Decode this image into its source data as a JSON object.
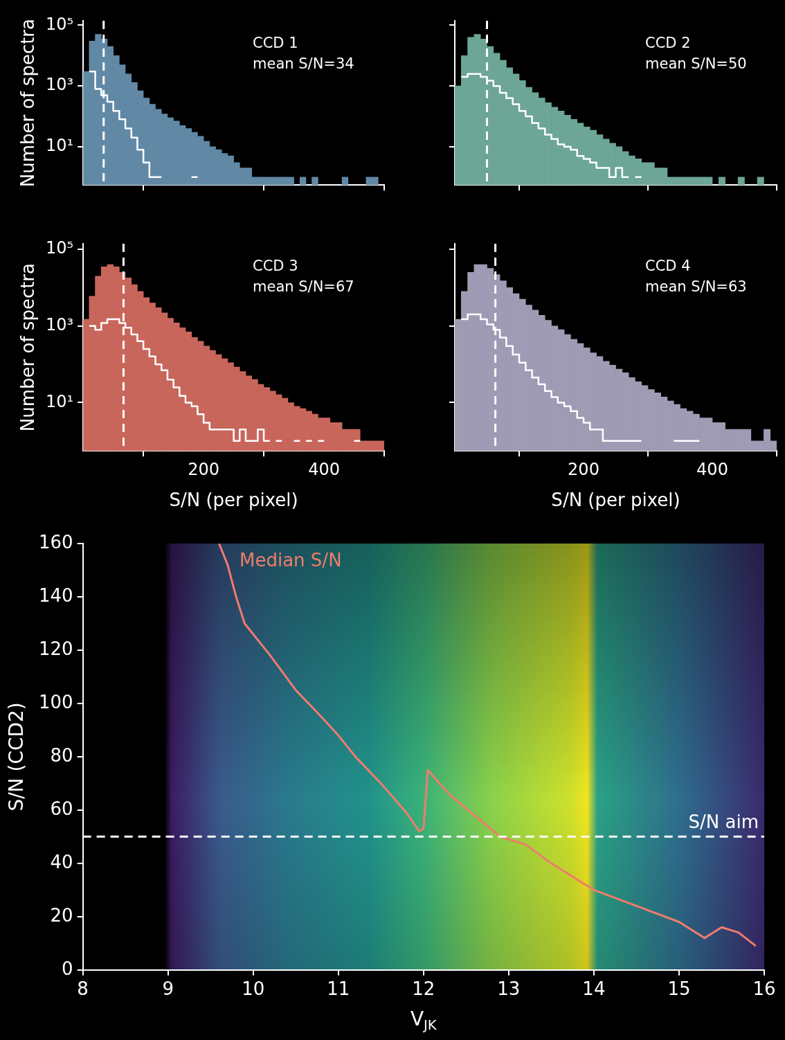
{
  "chart_data": [
    {
      "type": "histogram",
      "bins": [
        0,
        10,
        20,
        30,
        40,
        50,
        60,
        70,
        80,
        90,
        100,
        110,
        120,
        130,
        140,
        150,
        160,
        170,
        180,
        190,
        200,
        210,
        220,
        230,
        240,
        250,
        260,
        270,
        280,
        290,
        300,
        310,
        320,
        330,
        340,
        350,
        360,
        370,
        380,
        390,
        400,
        410,
        420,
        430,
        440,
        450,
        460,
        470,
        480,
        490,
        500
      ],
      "series": [
        {
          "type": "histogram",
          "color": "#6189a6",
          "values": [
            3000,
            30000,
            50000,
            35000,
            20000,
            10000,
            5000,
            2500,
            1300,
            700,
            400,
            250,
            170,
            120,
            90,
            70,
            50,
            40,
            30,
            22,
            15,
            10,
            8,
            6,
            5,
            3,
            2,
            2,
            1,
            1,
            1,
            1,
            1,
            1,
            1,
            null,
            1,
            null,
            1,
            null,
            null,
            null,
            null,
            1,
            null,
            null,
            null,
            1,
            1,
            null
          ]
        },
        {
          "type": "step",
          "color": "#ffffff",
          "x": [
            10,
            20,
            30,
            40,
            50,
            60,
            70,
            80,
            90,
            100,
            110,
            120,
            130,
            140,
            150,
            160,
            170,
            180,
            190
          ],
          "values": [
            3000,
            800,
            500,
            300,
            150,
            80,
            40,
            20,
            8,
            3,
            1,
            1,
            1,
            null,
            null,
            null,
            null,
            null,
            1
          ]
        }
      ],
      "xlim": [
        0,
        500
      ],
      "xticks": [
        200,
        400
      ],
      "ylim": [
        0.55,
        140000
      ],
      "log": "y",
      "yticks": [
        {
          "value": 10,
          "label": "10¹"
        },
        {
          "value": 1000,
          "label": "10³"
        },
        {
          "value": 100000,
          "label": "10⁵"
        }
      ],
      "ylabel": "Number of spectra",
      "tick_labels": "y",
      "annotations": [
        "CCD 1",
        "mean S/N=34"
      ],
      "ref_lines": [
        {
          "axis": "x",
          "value": 34,
          "color": "#ffffff",
          "line_style": "dashed"
        }
      ]
    },
    {
      "type": "histogram",
      "bins": [
        0,
        10,
        20,
        30,
        40,
        50,
        60,
        70,
        80,
        90,
        100,
        110,
        120,
        130,
        140,
        150,
        160,
        170,
        180,
        190,
        200,
        210,
        220,
        230,
        240,
        250,
        260,
        270,
        280,
        290,
        300,
        310,
        320,
        330,
        340,
        350,
        360,
        370,
        380,
        390,
        400,
        410,
        420,
        430,
        440,
        450,
        460,
        470,
        480,
        490,
        500
      ],
      "series": [
        {
          "type": "histogram",
          "color": "#6da696",
          "values": [
            1000,
            10000,
            40000,
            50000,
            35000,
            20000,
            12000,
            7000,
            4000,
            2500,
            1500,
            900,
            600,
            400,
            280,
            200,
            150,
            110,
            80,
            60,
            45,
            35,
            25,
            18,
            13,
            10,
            7,
            5,
            4,
            3,
            3,
            2,
            2,
            1,
            1,
            1,
            1,
            1,
            1,
            1,
            null,
            1,
            null,
            null,
            1,
            null,
            null,
            1,
            null,
            null
          ]
        },
        {
          "type": "step",
          "color": "#ffffff",
          "x": [
            10,
            20,
            30,
            40,
            50,
            60,
            70,
            80,
            90,
            100,
            110,
            120,
            130,
            140,
            150,
            160,
            170,
            180,
            190,
            200,
            210,
            220,
            230,
            240,
            250,
            260,
            270,
            280,
            290
          ],
          "values": [
            2000,
            2500,
            2500,
            2000,
            1500,
            1000,
            600,
            400,
            250,
            150,
            100,
            60,
            40,
            25,
            18,
            12,
            10,
            8,
            5,
            4,
            3,
            2,
            2,
            1,
            2,
            1,
            1,
            null,
            1
          ]
        }
      ],
      "xlim": [
        0,
        500
      ],
      "xticks": [
        {
          "value": 200,
          "label": null
        },
        {
          "value": 400,
          "label": null
        }
      ],
      "ylim": [
        0.55,
        140000
      ],
      "log": "y",
      "yticks": [
        {
          "value": 10,
          "label": null
        },
        {
          "value": 1000,
          "label": null
        },
        {
          "value": 100000,
          "label": null
        }
      ],
      "tick_labels": false,
      "annotations": [
        "CCD 2",
        "mean S/N=50"
      ],
      "ref_lines": [
        {
          "axis": "x",
          "value": 50,
          "color": "#ffffff",
          "line_style": "dashed"
        }
      ]
    },
    {
      "type": "histogram",
      "bins": [
        0,
        10,
        20,
        30,
        40,
        50,
        60,
        70,
        80,
        90,
        100,
        110,
        120,
        130,
        140,
        150,
        160,
        170,
        180,
        190,
        200,
        210,
        220,
        230,
        240,
        250,
        260,
        270,
        280,
        290,
        300,
        310,
        320,
        330,
        340,
        350,
        360,
        370,
        380,
        390,
        400,
        410,
        420,
        430,
        440,
        450,
        460,
        470,
        480,
        490,
        500
      ],
      "series": [
        {
          "type": "histogram",
          "color": "#c9665c",
          "values": [
            1500,
            6000,
            20000,
            35000,
            40000,
            35000,
            25000,
            18000,
            12000,
            8000,
            5500,
            4000,
            3000,
            2200,
            1600,
            1200,
            900,
            700,
            500,
            400,
            300,
            230,
            180,
            140,
            110,
            85,
            65,
            50,
            40,
            30,
            25,
            20,
            16,
            13,
            10,
            8,
            7,
            6,
            5,
            4,
            4,
            3,
            3,
            2,
            2,
            2,
            1,
            1,
            1,
            1
          ]
        },
        {
          "type": "step",
          "color": "#ffffff",
          "x": [
            10,
            20,
            30,
            40,
            50,
            60,
            70,
            80,
            90,
            100,
            110,
            120,
            130,
            140,
            150,
            160,
            170,
            180,
            190,
            200,
            210,
            220,
            230,
            240,
            250,
            260,
            270,
            280,
            290,
            300,
            310,
            320,
            330,
            340,
            350,
            360,
            370,
            380,
            390,
            400,
            410,
            420,
            430,
            440,
            450,
            460
          ],
          "values": [
            1000,
            800,
            1200,
            1500,
            1500,
            1200,
            900,
            600,
            400,
            250,
            160,
            100,
            70,
            40,
            25,
            15,
            10,
            8,
            5,
            3,
            2,
            2,
            2,
            2,
            1,
            2,
            1,
            1,
            2,
            1,
            1,
            null,
            1,
            null,
            null,
            1,
            null,
            1,
            null,
            1,
            null,
            null,
            null,
            null,
            null,
            1
          ]
        }
      ],
      "xlim": [
        0,
        500
      ],
      "xticks": [
        200,
        400
      ],
      "ylim": [
        0.55,
        140000
      ],
      "log": "y",
      "yticks": [
        {
          "value": 10,
          "label": "10¹"
        },
        {
          "value": 1000,
          "label": "10³"
        },
        {
          "value": 100000,
          "label": "10⁵"
        }
      ],
      "xlabel": "S/N (per pixel)",
      "ylabel": "Number of spectra",
      "annotations": [
        "CCD 3",
        "mean S/N=67"
      ],
      "ref_lines": [
        {
          "axis": "x",
          "value": 67,
          "color": "#ffffff",
          "line_style": "dashed"
        }
      ]
    },
    {
      "type": "histogram",
      "bins": [
        0,
        10,
        20,
        30,
        40,
        50,
        60,
        70,
        80,
        90,
        100,
        110,
        120,
        130,
        140,
        150,
        160,
        170,
        180,
        190,
        200,
        210,
        220,
        230,
        240,
        250,
        260,
        270,
        280,
        290,
        300,
        310,
        320,
        330,
        340,
        350,
        360,
        370,
        380,
        390,
        400,
        410,
        420,
        430,
        440,
        450,
        460,
        470,
        480,
        490,
        500
      ],
      "series": [
        {
          "type": "histogram",
          "color": "#9f9bb4",
          "values": [
            1500,
            8000,
            25000,
            40000,
            40000,
            32000,
            22000,
            15000,
            10000,
            7000,
            5000,
            3500,
            2600,
            1900,
            1400,
            1000,
            800,
            600,
            450,
            350,
            270,
            200,
            160,
            120,
            95,
            75,
            60,
            45,
            35,
            28,
            22,
            18,
            14,
            11,
            9,
            7,
            6,
            5,
            4,
            4,
            3,
            3,
            2,
            2,
            2,
            2,
            1,
            1,
            2,
            1
          ]
        },
        {
          "type": "step",
          "color": "#ffffff",
          "x": [
            10,
            20,
            30,
            40,
            50,
            60,
            70,
            80,
            90,
            100,
            110,
            120,
            130,
            140,
            150,
            160,
            170,
            180,
            190,
            200,
            210,
            220,
            230,
            240,
            250,
            260,
            270,
            280,
            290,
            300,
            310,
            320,
            330,
            340,
            350,
            360,
            370,
            380
          ],
          "values": [
            1500,
            2000,
            2000,
            1500,
            1100,
            800,
            500,
            300,
            180,
            110,
            70,
            45,
            30,
            20,
            14,
            10,
            8,
            6,
            4,
            3,
            2,
            2,
            1,
            1,
            1,
            1,
            1,
            1,
            1,
            null,
            null,
            null,
            null,
            null,
            1,
            1,
            1,
            1
          ]
        }
      ],
      "xlim": [
        0,
        500
      ],
      "xticks": [
        200,
        400
      ],
      "ylim": [
        0.55,
        140000
      ],
      "log": "y",
      "yticks": [
        {
          "value": 10,
          "label": null
        },
        {
          "value": 1000,
          "label": null
        },
        {
          "value": 100000,
          "label": null
        }
      ],
      "xlabel": "S/N (per pixel)",
      "tick_labels": "x",
      "annotations": [
        "CCD 4",
        "mean S/N=63"
      ],
      "ref_lines": [
        {
          "axis": "x",
          "value": 63,
          "color": "#ffffff",
          "line_style": "dashed"
        }
      ]
    },
    {
      "type": "line",
      "xlabel": "V$_{JK}$",
      "ylabel": "S/N (CCD2)",
      "xlim": [
        8,
        16
      ],
      "xticks": [
        8,
        9,
        10,
        11,
        12,
        13,
        14,
        15,
        16
      ],
      "ylim": [
        0,
        160
      ],
      "yticks": [
        0,
        20,
        40,
        60,
        80,
        100,
        120,
        140,
        160
      ],
      "series": [
        {
          "type": "line",
          "color": "#f07c6c",
          "x": [
            9.6,
            9.7,
            9.8,
            9.9,
            10.0,
            10.2,
            10.5,
            10.8,
            11.0,
            11.2,
            11.5,
            11.8,
            11.95,
            12.0,
            12.05,
            12.3,
            12.6,
            12.9,
            13.2,
            13.5,
            14.0,
            14.5,
            15.0,
            15.3,
            15.5,
            15.7,
            15.9
          ],
          "values": [
            160,
            152,
            140,
            130,
            126,
            118,
            105,
            95,
            88,
            80,
            70,
            59,
            52,
            53,
            75,
            66,
            58,
            50,
            47,
            40,
            30,
            24,
            18,
            12,
            16,
            14,
            9
          ]
        }
      ],
      "ref_lines": [
        {
          "axis": "y",
          "value": 50,
          "label": "S/N aim",
          "color": "#ffffff",
          "line_style": "dashed"
        }
      ],
      "annotations": [
        "Median S/N"
      ]
    }
  ]
}
